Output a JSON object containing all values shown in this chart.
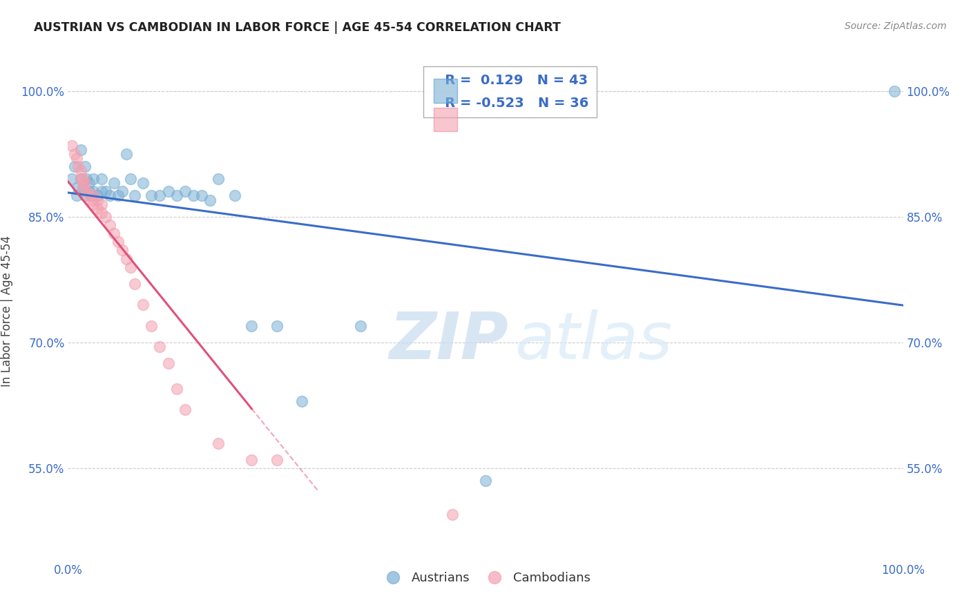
{
  "title": "AUSTRIAN VS CAMBODIAN IN LABOR FORCE | AGE 45-54 CORRELATION CHART",
  "source": "Source: ZipAtlas.com",
  "ylabel": "In Labor Force | Age 45-54",
  "xlim": [
    0.0,
    1.0
  ],
  "ylim": [
    0.44,
    1.035
  ],
  "r_austrians": 0.129,
  "n_austrians": 43,
  "r_cambodians": -0.523,
  "n_cambodians": 36,
  "watermark_zip": "ZIP",
  "watermark_atlas": "atlas",
  "blue_color": "#7BAFD4",
  "pink_color": "#F4A0B0",
  "legend_label_austrians": "Austrians",
  "legend_label_cambodians": "Cambodians",
  "blue_line_color": "#3B6CC7",
  "pink_line_color": "#E0507A",
  "yticks": [
    0.55,
    0.7,
    0.85,
    1.0
  ],
  "ytick_labels": [
    "55.0%",
    "70.0%",
    "85.0%",
    "100.0%"
  ],
  "xtick_labels": [
    "0.0%",
    "100.0%"
  ],
  "austrians_x": [
    0.005,
    0.008,
    0.01,
    0.012,
    0.015,
    0.015,
    0.018,
    0.02,
    0.02,
    0.022,
    0.025,
    0.025,
    0.028,
    0.03,
    0.03,
    0.035,
    0.04,
    0.04,
    0.045,
    0.05,
    0.055,
    0.06,
    0.065,
    0.07,
    0.075,
    0.08,
    0.09,
    0.1,
    0.11,
    0.12,
    0.13,
    0.14,
    0.15,
    0.16,
    0.17,
    0.18,
    0.2,
    0.22,
    0.25,
    0.28,
    0.35,
    0.5,
    0.99
  ],
  "austrians_y": [
    0.895,
    0.91,
    0.875,
    0.885,
    0.895,
    0.93,
    0.885,
    0.875,
    0.91,
    0.895,
    0.88,
    0.89,
    0.875,
    0.88,
    0.895,
    0.875,
    0.88,
    0.895,
    0.88,
    0.875,
    0.89,
    0.875,
    0.88,
    0.925,
    0.895,
    0.875,
    0.89,
    0.875,
    0.875,
    0.88,
    0.875,
    0.88,
    0.875,
    0.875,
    0.87,
    0.895,
    0.875,
    0.72,
    0.72,
    0.63,
    0.72,
    0.535,
    1.0
  ],
  "cambodians_x": [
    0.005,
    0.008,
    0.01,
    0.012,
    0.015,
    0.015,
    0.018,
    0.018,
    0.02,
    0.022,
    0.025,
    0.028,
    0.03,
    0.03,
    0.035,
    0.035,
    0.04,
    0.04,
    0.045,
    0.05,
    0.055,
    0.06,
    0.065,
    0.07,
    0.075,
    0.08,
    0.09,
    0.1,
    0.11,
    0.12,
    0.13,
    0.14,
    0.18,
    0.22,
    0.25,
    0.46
  ],
  "cambodians_y": [
    0.935,
    0.925,
    0.92,
    0.91,
    0.905,
    0.895,
    0.895,
    0.885,
    0.89,
    0.88,
    0.875,
    0.87,
    0.865,
    0.875,
    0.86,
    0.87,
    0.855,
    0.865,
    0.85,
    0.84,
    0.83,
    0.82,
    0.81,
    0.8,
    0.79,
    0.77,
    0.745,
    0.72,
    0.695,
    0.675,
    0.645,
    0.62,
    0.58,
    0.56,
    0.56,
    0.495
  ]
}
